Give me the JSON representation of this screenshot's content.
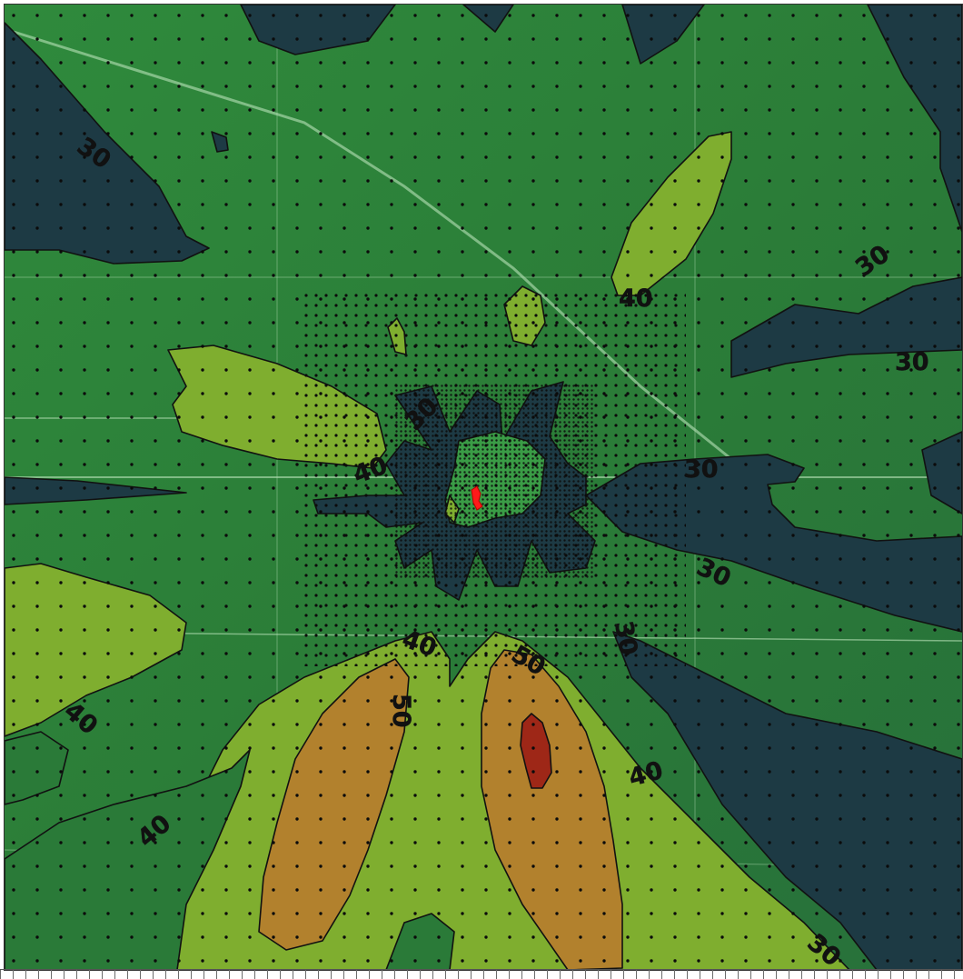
{
  "map": {
    "type": "noise-contour-overlay",
    "basemap": "satellite imagery, rural farmland with roads",
    "contour_levels": [
      30,
      40,
      50,
      60
    ],
    "level_colors": {
      "30": "#1d3a44",
      "35": "#2d7a3a",
      "40": "#7fae2f",
      "50": "#b2812d",
      "60": "#9e2717"
    },
    "source_marker_color": "#ff1a1a",
    "receptor_grid": "coarse outer grid, medium middle grid, dense inner grid",
    "labels": {
      "l30_nw": "30",
      "l30_ne": "30",
      "l30_e": "30",
      "l30_e2": "30",
      "l30_e3": "30",
      "l30_se": "30",
      "l30_s": "30",
      "l30_sse": "30",
      "l30_center": "30",
      "l40_ne": "40",
      "l40_center_w": "40",
      "l40_s": "40",
      "l40_sw": "40",
      "l40_sw2": "40",
      "l40_se": "40",
      "l50_s": "50",
      "l50_se": "50"
    }
  }
}
